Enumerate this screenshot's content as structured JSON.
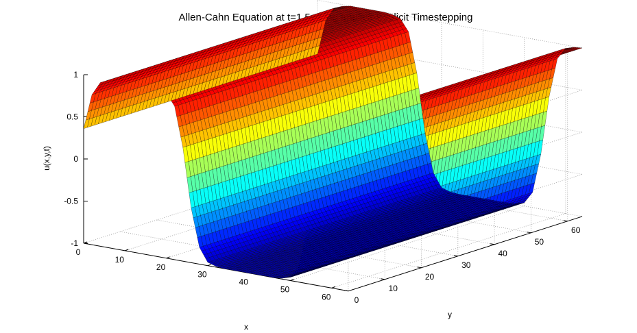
{
  "chart_data": {
    "type": "surface",
    "title": "Allen-Cahn Equation at t=1.5 using Implicit-Explicit Timestepping",
    "xlabel": "x",
    "ylabel": "y",
    "zlabel": "u(x,y,t)",
    "xlim": [
      0,
      64
    ],
    "ylim": [
      0,
      64
    ],
    "zlim": [
      -1,
      1
    ],
    "x_ticks": [
      "0",
      "10",
      "20",
      "30",
      "40",
      "50",
      "60"
    ],
    "y_ticks": [
      "0",
      "10",
      "20",
      "30",
      "40",
      "50",
      "60"
    ],
    "z_ticks": [
      "-1",
      "-0.5",
      "0",
      "0.5",
      "1"
    ],
    "grid": true,
    "colormap": "jet",
    "profile": {
      "description_var": "x",
      "x": [
        0,
        2,
        4,
        6,
        8,
        10,
        12,
        14,
        16,
        18,
        20,
        22,
        24,
        26,
        28,
        30,
        32,
        34,
        36,
        38,
        40,
        42,
        44,
        46,
        48,
        50,
        52,
        54,
        56,
        58,
        60,
        62,
        64
      ],
      "u": [
        0.36,
        0.78,
        0.94,
        0.98,
        1.0,
        1.0,
        1.0,
        1.0,
        1.0,
        0.99,
        0.96,
        0.82,
        0.35,
        -0.35,
        -0.8,
        -0.96,
        -0.99,
        -1.0,
        -1.0,
        -1.0,
        -1.0,
        -1.0,
        -1.0,
        -1.0,
        -0.99,
        -0.96,
        -0.82,
        -0.35,
        0.35,
        0.82,
        0.96,
        0.99,
        1.0
      ]
    },
    "y_variation": "none",
    "mesh_lines": 64
  }
}
